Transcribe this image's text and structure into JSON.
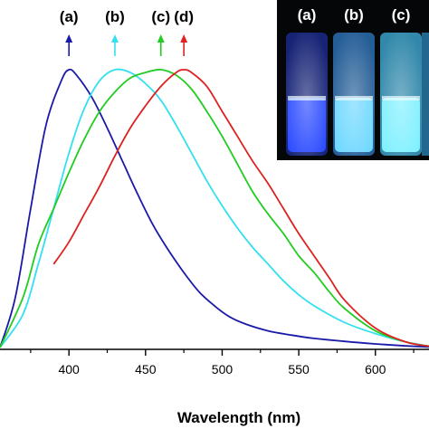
{
  "chart_data": {
    "type": "line",
    "xlabel": "Wavelength (nm)",
    "ylabel": "",
    "xlim": [
      355,
      635
    ],
    "ylim": [
      0,
      1
    ],
    "x_ticks": [
      400,
      450,
      500,
      550,
      600
    ],
    "grid": false,
    "legend": "none",
    "series": [
      {
        "label": "(a)",
        "color": "#1a1aa8",
        "x": [
          355,
          365,
          375,
          385,
          395,
          400,
          405,
          415,
          425,
          435,
          445,
          455,
          465,
          475,
          485,
          495,
          505,
          515,
          530,
          545,
          560,
          580,
          600,
          620,
          635
        ],
        "y": [
          0.0,
          0.18,
          0.5,
          0.8,
          0.96,
          1.0,
          0.98,
          0.9,
          0.79,
          0.67,
          0.55,
          0.44,
          0.35,
          0.27,
          0.2,
          0.15,
          0.11,
          0.085,
          0.06,
          0.045,
          0.033,
          0.022,
          0.013,
          0.006,
          0.002
        ]
      },
      {
        "label": "(b)",
        "color": "#33e0f0",
        "x": [
          355,
          370,
          380,
          390,
          400,
          410,
          420,
          430,
          440,
          450,
          460,
          470,
          480,
          490,
          500,
          510,
          520,
          530,
          540,
          550,
          560,
          580,
          600,
          620,
          635
        ],
        "y": [
          0.0,
          0.12,
          0.3,
          0.5,
          0.7,
          0.86,
          0.96,
          1.0,
          0.99,
          0.95,
          0.89,
          0.8,
          0.7,
          0.6,
          0.51,
          0.43,
          0.36,
          0.3,
          0.24,
          0.19,
          0.15,
          0.09,
          0.05,
          0.02,
          0.005
        ]
      },
      {
        "label": "(c)",
        "color": "#22cc22",
        "x": [
          355,
          370,
          380,
          390,
          400,
          410,
          420,
          430,
          440,
          450,
          460,
          470,
          480,
          490,
          500,
          510,
          520,
          530,
          540,
          550,
          560,
          570,
          580,
          600,
          620,
          635
        ],
        "y": [
          0.0,
          0.18,
          0.37,
          0.5,
          0.63,
          0.75,
          0.85,
          0.92,
          0.97,
          0.99,
          1.0,
          0.98,
          0.93,
          0.85,
          0.76,
          0.66,
          0.56,
          0.48,
          0.41,
          0.33,
          0.27,
          0.2,
          0.14,
          0.06,
          0.02,
          0.005
        ]
      },
      {
        "label": "(d)",
        "color": "#dd2222",
        "x": [
          390,
          400,
          410,
          420,
          430,
          440,
          450,
          460,
          470,
          475,
          480,
          490,
          500,
          510,
          520,
          530,
          540,
          550,
          560,
          570,
          580,
          600,
          620,
          635
        ],
        "y": [
          0.3,
          0.38,
          0.48,
          0.58,
          0.69,
          0.79,
          0.87,
          0.94,
          0.99,
          1.0,
          0.99,
          0.94,
          0.85,
          0.76,
          0.67,
          0.59,
          0.5,
          0.41,
          0.33,
          0.25,
          0.17,
          0.07,
          0.02,
          0.005
        ]
      }
    ],
    "peak_markers": [
      {
        "label": "(a)",
        "x": 400,
        "color": "#1a1aa8"
      },
      {
        "label": "(b)",
        "x": 430,
        "color": "#33e0f0"
      },
      {
        "label": "(c)",
        "x": 460,
        "color": "#22cc22"
      },
      {
        "label": "(d)",
        "x": 475,
        "color": "#dd2222"
      }
    ]
  },
  "inset": {
    "labels": [
      "(a)",
      "(b)",
      "(c)"
    ],
    "liquid_colors": [
      "#2a4aff",
      "#6ed8ff",
      "#7ff0ff"
    ],
    "glass_colors": [
      "#1b2a8a",
      "#2c6fb0",
      "#3aa0c8"
    ]
  }
}
